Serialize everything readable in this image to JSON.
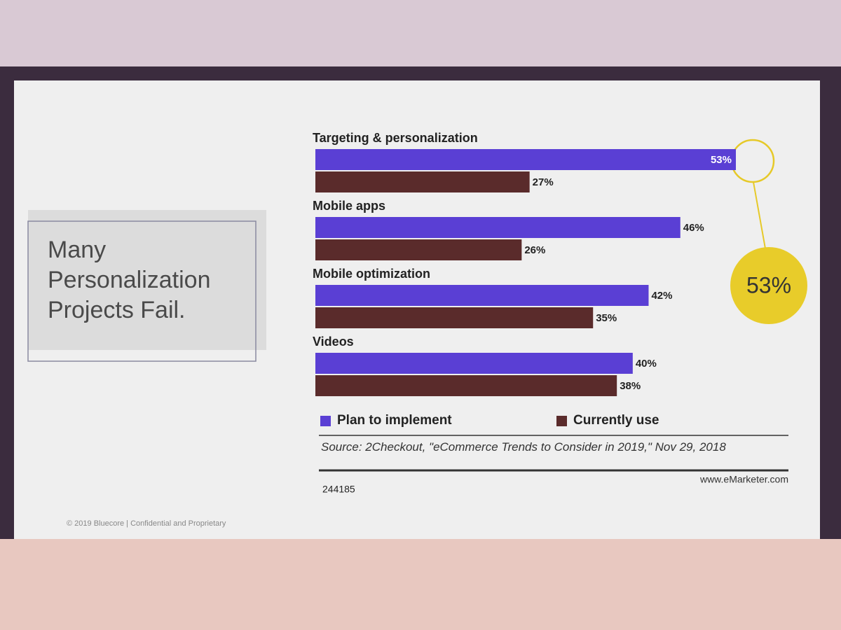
{
  "slide": {
    "title": "Many Personalization Projects Fail.",
    "footer": "© 2019 Bluecore | Confidential and Proprietary"
  },
  "chart_data": {
    "type": "bar",
    "orientation": "horizontal",
    "categories": [
      "Targeting & personalization",
      "Mobile apps",
      "Mobile optimization",
      "Videos"
    ],
    "series": [
      {
        "name": "Plan to implement",
        "color": "#5a3fd4",
        "values": [
          53,
          46,
          42,
          40
        ],
        "value_labels": [
          "53%",
          "46%",
          "42%",
          "40%"
        ]
      },
      {
        "name": "Currently use",
        "color": "#5a2b2b",
        "values": [
          27,
          26,
          35,
          38
        ],
        "value_labels": [
          "27%",
          "26%",
          "35%",
          "38%"
        ]
      }
    ],
    "annotation": "53%",
    "source": "Source: 2Checkout, \"eCommerce Trends to Consider in 2019,\" Nov 29, 2018",
    "chart_id": "244185",
    "credit": "www.eMarketer.com"
  }
}
